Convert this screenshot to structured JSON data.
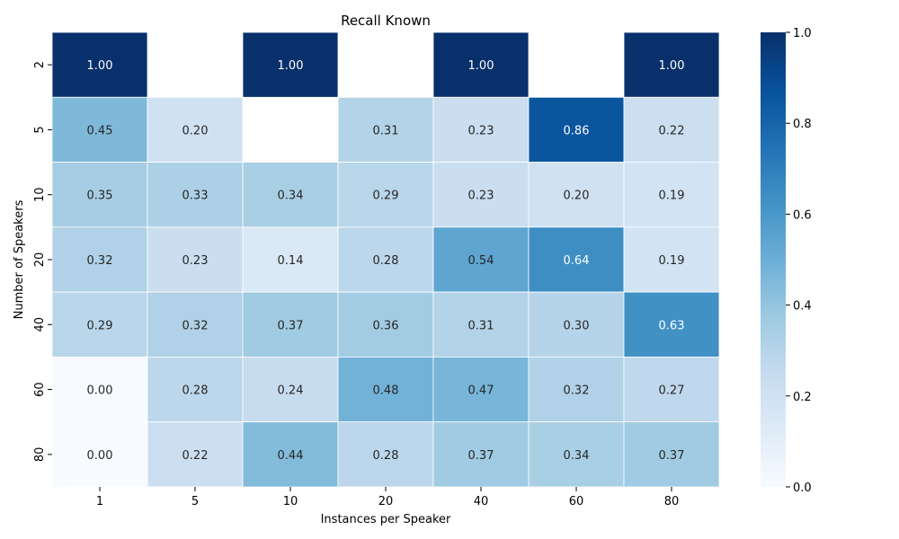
{
  "chart_data": {
    "type": "heatmap",
    "title": "Recall Known",
    "xlabel": "Instances per Speaker",
    "ylabel": "Number of Speakers",
    "x_categories": [
      "1",
      "5",
      "10",
      "20",
      "40",
      "60",
      "80"
    ],
    "y_categories": [
      "2",
      "5",
      "10",
      "20",
      "40",
      "60",
      "80"
    ],
    "values": [
      [
        1.0,
        null,
        1.0,
        null,
        1.0,
        null,
        1.0
      ],
      [
        0.45,
        0.2,
        null,
        0.31,
        0.23,
        0.86,
        0.22
      ],
      [
        0.35,
        0.33,
        0.34,
        0.29,
        0.23,
        0.2,
        0.19
      ],
      [
        0.32,
        0.23,
        0.14,
        0.28,
        0.54,
        0.64,
        0.19
      ],
      [
        0.29,
        0.32,
        0.37,
        0.36,
        0.31,
        0.3,
        0.63
      ],
      [
        0.0,
        0.28,
        0.24,
        0.48,
        0.47,
        0.32,
        0.27
      ],
      [
        0.0,
        0.22,
        0.44,
        0.28,
        0.37,
        0.34,
        0.37
      ]
    ],
    "value_range": [
      0.0,
      1.0
    ],
    "colormap": "Blues",
    "colorbar_ticks": [
      "0.0",
      "0.2",
      "0.4",
      "0.6",
      "0.8",
      "1.0"
    ],
    "grid": false,
    "cell_separator_color": "#ffffff"
  }
}
